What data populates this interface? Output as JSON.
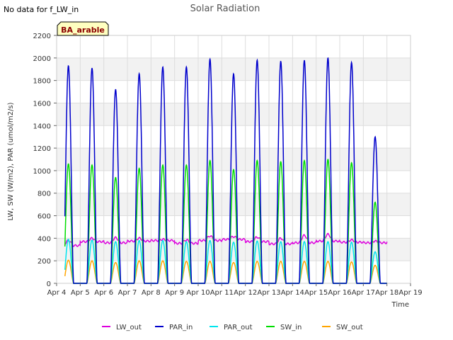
{
  "header_note": "No data for f_LW_in",
  "chart_data": {
    "type": "line",
    "title": "Solar Radiation",
    "xlabel": "Time",
    "ylabel": "LW, SW (W/m2), PAR (umol/m2/s)",
    "badge": "BA_arable",
    "xlim": [
      4,
      19
    ],
    "ylim": [
      0,
      2200
    ],
    "x_ticks": [
      {
        "v": 4,
        "label": "Apr 4"
      },
      {
        "v": 5,
        "label": "Apr 5"
      },
      {
        "v": 6,
        "label": "Apr 6"
      },
      {
        "v": 7,
        "label": "Apr 7"
      },
      {
        "v": 8,
        "label": "Apr 8"
      },
      {
        "v": 9,
        "label": "Apr 9"
      },
      {
        "v": 10,
        "label": "Apr 10"
      },
      {
        "v": 11,
        "label": "Apr 11"
      },
      {
        "v": 12,
        "label": "Apr 12"
      },
      {
        "v": 13,
        "label": "Apr 13"
      },
      {
        "v": 14,
        "label": "Apr 14"
      },
      {
        "v": 15,
        "label": "Apr 15"
      },
      {
        "v": 16,
        "label": "Apr 16"
      },
      {
        "v": 17,
        "label": "Apr 17"
      },
      {
        "v": 18,
        "label": "Apr 18"
      },
      {
        "v": 19,
        "label": "Apr 19"
      }
    ],
    "y_ticks": [
      0,
      200,
      400,
      600,
      800,
      1000,
      1200,
      1400,
      1600,
      1800,
      2000,
      2200
    ],
    "grid": true,
    "legend_position": "bottom",
    "data_start": 4.35,
    "data_end": 18.0,
    "series": [
      {
        "name": "LW_out",
        "color": "#dd00dd",
        "night": [
          335,
          370,
          360,
          375,
          380,
          355,
          380,
          390,
          370,
          350,
          360,
          375,
          365,
          360,
          370
        ],
        "day": [
          380,
          400,
          405,
          400,
          390,
          385,
          420,
          415,
          410,
          400,
          425,
          435,
          385,
          375,
          385
        ]
      },
      {
        "name": "PAR_in",
        "color": "#0000cc",
        "peaks": [
          1930,
          1910,
          1720,
          1860,
          1920,
          1920,
          1990,
          1860,
          1980,
          1970,
          1980,
          2000,
          1960,
          1300
        ]
      },
      {
        "name": "PAR_out",
        "color": "#00e5ee",
        "peaks": [
          390,
          385,
          370,
          380,
          380,
          370,
          380,
          365,
          375,
          370,
          370,
          370,
          365,
          280
        ]
      },
      {
        "name": "SW_in",
        "color": "#00dd00",
        "peaks": [
          1060,
          1050,
          940,
          1020,
          1050,
          1050,
          1090,
          1010,
          1090,
          1080,
          1090,
          1100,
          1070,
          720
        ]
      },
      {
        "name": "SW_out",
        "color": "#ffa500",
        "peaks": [
          205,
          200,
          185,
          200,
          200,
          195,
          195,
          185,
          195,
          195,
          195,
          195,
          190,
          160
        ]
      }
    ]
  }
}
